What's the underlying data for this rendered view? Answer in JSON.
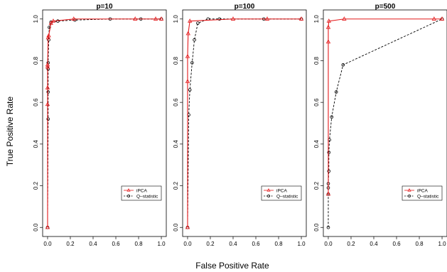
{
  "figure": {
    "xlabel": "False Positive Rate",
    "ylabel": "True Positive Rate"
  },
  "chart_data": [
    {
      "type": "line",
      "title": "p=10",
      "xlabel": "False Positive Rate",
      "ylabel": "True Positive Rate",
      "xlim": [
        0,
        1
      ],
      "ylim": [
        0,
        1
      ],
      "xticks": [
        "0.0",
        "0.2",
        "0.4",
        "0.6",
        "0.8",
        "1.0"
      ],
      "yticks": [
        "0.0",
        "0.2",
        "0.4",
        "0.6",
        "0.8",
        "1.0"
      ],
      "legend": "bottom-right",
      "series": [
        {
          "name": "iPCA",
          "color": "#e41a1c",
          "marker": "triangle",
          "line": "solid",
          "points": [
            [
              0,
              0
            ],
            [
              0,
              0.59
            ],
            [
              0,
              0.67
            ],
            [
              0,
              0.77
            ],
            [
              0,
              0.78
            ],
            [
              0.005,
              0.91
            ],
            [
              0.01,
              0.92
            ],
            [
              0.03,
              0.98
            ],
            [
              0.05,
              0.99
            ],
            [
              0.23,
              1
            ],
            [
              0.77,
              1
            ],
            [
              0.95,
              1
            ],
            [
              1,
              1
            ]
          ]
        },
        {
          "name": "Q–statistic",
          "color": "#000000",
          "marker": "circle",
          "line": "dashed",
          "points": [
            [
              0,
              0
            ],
            [
              0.005,
              0.52
            ],
            [
              0.005,
              0.65
            ],
            [
              0.005,
              0.76
            ],
            [
              0.005,
              0.79
            ],
            [
              0.01,
              0.9
            ],
            [
              0.015,
              0.96
            ],
            [
              0.03,
              0.985
            ],
            [
              0.09,
              0.99
            ],
            [
              0.24,
              0.995
            ],
            [
              0.55,
              1
            ],
            [
              0.82,
              1
            ],
            [
              1,
              1
            ]
          ]
        }
      ]
    },
    {
      "type": "line",
      "title": "p=100",
      "xlabel": "False Positive Rate",
      "ylabel": "True Positive Rate",
      "xlim": [
        0,
        1
      ],
      "ylim": [
        0,
        1
      ],
      "xticks": [
        "0.0",
        "0.2",
        "0.4",
        "0.6",
        "0.8",
        "1.0"
      ],
      "yticks": [
        "0.0",
        "0.2",
        "0.4",
        "0.6",
        "0.8",
        "1.0"
      ],
      "legend": "bottom-right",
      "series": [
        {
          "name": "iPCA",
          "color": "#e41a1c",
          "marker": "triangle",
          "line": "solid",
          "points": [
            [
              0,
              0
            ],
            [
              0,
              0.7
            ],
            [
              0,
              0.82
            ],
            [
              0.005,
              0.93
            ],
            [
              0.02,
              0.99
            ],
            [
              0.4,
              1
            ],
            [
              0.7,
              1
            ],
            [
              1,
              1
            ]
          ]
        },
        {
          "name": "Q–statistic",
          "color": "#000000",
          "marker": "circle",
          "line": "dashed",
          "points": [
            [
              0,
              0
            ],
            [
              0.01,
              0.54
            ],
            [
              0.02,
              0.66
            ],
            [
              0.04,
              0.79
            ],
            [
              0.06,
              0.9
            ],
            [
              0.09,
              0.98
            ],
            [
              0.18,
              1
            ],
            [
              0.28,
              1
            ],
            [
              0.67,
              1
            ],
            [
              1,
              1
            ]
          ]
        }
      ]
    },
    {
      "type": "line",
      "title": "p=500",
      "xlabel": "False Positive Rate",
      "ylabel": "True Positive Rate",
      "xlim": [
        0,
        1
      ],
      "ylim": [
        0,
        1
      ],
      "xticks": [
        "0.0",
        "0.2",
        "0.4",
        "0.6",
        "0.8",
        "1.0"
      ],
      "yticks": [
        "0.0",
        "0.2",
        "0.4",
        "0.6",
        "0.8",
        "1.0"
      ],
      "legend": "bottom-right",
      "series": [
        {
          "name": "iPCA",
          "color": "#e41a1c",
          "marker": "triangle",
          "line": "solid",
          "points": [
            [
              0,
              0.16
            ],
            [
              0,
              0.89
            ],
            [
              0,
              0.96
            ],
            [
              0.005,
              0.99
            ],
            [
              0.14,
              1
            ],
            [
              0.93,
              1
            ],
            [
              1,
              1
            ]
          ]
        },
        {
          "name": "Q–statistic",
          "color": "#000000",
          "marker": "circle",
          "line": "dashed",
          "points": [
            [
              0,
              0
            ],
            [
              0,
              0.16
            ],
            [
              0,
              0.19
            ],
            [
              0,
              0.21
            ],
            [
              0.005,
              0.27
            ],
            [
              0.005,
              0.36
            ],
            [
              0.01,
              0.42
            ],
            [
              0.03,
              0.53
            ],
            [
              0.07,
              0.65
            ],
            [
              0.13,
              0.78
            ],
            [
              1,
              1
            ]
          ]
        }
      ]
    }
  ]
}
